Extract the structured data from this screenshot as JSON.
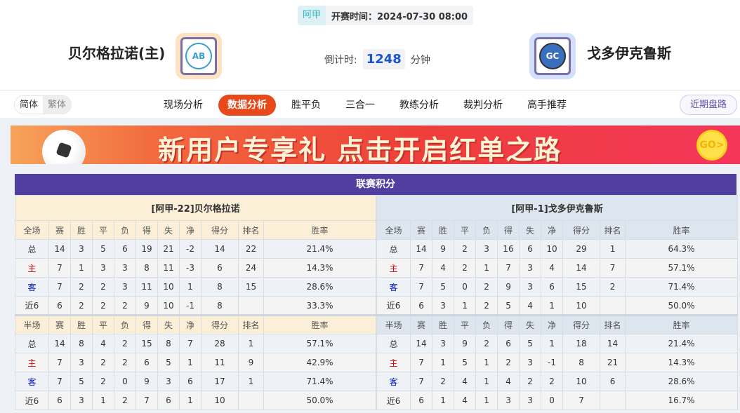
{
  "match": {
    "league": "阿甲",
    "kickoff": "开赛时间：2024-07-30 08:00",
    "home": "贝尔格拉诺(主)",
    "away": "戈多伊克鲁斯",
    "countdown_label": "倒计时:",
    "countdown_value": "1248",
    "countdown_unit": "分钟",
    "home_logo": "AB",
    "away_logo": "GC"
  },
  "nav": {
    "lang": [
      "简体",
      "繁体"
    ],
    "tabs": [
      "现场分析",
      "数据分析",
      "胜平负",
      "三合一",
      "教练分析",
      "裁判分析",
      "高手推荐"
    ],
    "active": 1,
    "recent": "近期盘路"
  },
  "banner": {
    "text": "新用户专享礼  点击开启红单之路",
    "go": "GO>"
  },
  "standings": {
    "title": "联赛积分",
    "columns": [
      "赛",
      "胜",
      "平",
      "负",
      "得",
      "失",
      "净",
      "得分",
      "排名",
      "胜率"
    ],
    "full_label": "全场",
    "half_label": "半场",
    "home": {
      "title": "[阿甲-22]贝尔格拉诺",
      "full": [
        [
          "总",
          "14",
          "3",
          "5",
          "6",
          "19",
          "21",
          "-2",
          "14",
          "22",
          "21.4%"
        ],
        [
          "主",
          "7",
          "1",
          "3",
          "3",
          "8",
          "11",
          "-3",
          "6",
          "24",
          "14.3%"
        ],
        [
          "客",
          "7",
          "2",
          "2",
          "3",
          "11",
          "10",
          "1",
          "8",
          "15",
          "28.6%"
        ],
        [
          "近6",
          "6",
          "2",
          "2",
          "2",
          "9",
          "10",
          "-1",
          "8",
          "",
          "33.3%"
        ]
      ],
      "half": [
        [
          "总",
          "14",
          "8",
          "4",
          "2",
          "15",
          "8",
          "7",
          "28",
          "1",
          "57.1%"
        ],
        [
          "主",
          "7",
          "3",
          "2",
          "2",
          "6",
          "5",
          "1",
          "11",
          "9",
          "42.9%"
        ],
        [
          "客",
          "7",
          "5",
          "2",
          "0",
          "9",
          "3",
          "6",
          "17",
          "1",
          "71.4%"
        ],
        [
          "近6",
          "6",
          "3",
          "1",
          "2",
          "7",
          "6",
          "1",
          "10",
          "",
          "50.0%"
        ]
      ]
    },
    "away": {
      "title": "[阿甲-1]戈多伊克鲁斯",
      "full": [
        [
          "总",
          "14",
          "9",
          "2",
          "3",
          "16",
          "6",
          "10",
          "29",
          "1",
          "64.3%"
        ],
        [
          "主",
          "7",
          "4",
          "2",
          "1",
          "7",
          "3",
          "4",
          "14",
          "7",
          "57.1%"
        ],
        [
          "客",
          "7",
          "5",
          "0",
          "2",
          "9",
          "3",
          "6",
          "15",
          "2",
          "71.4%"
        ],
        [
          "近6",
          "6",
          "3",
          "1",
          "2",
          "5",
          "4",
          "1",
          "10",
          "",
          "50.0%"
        ]
      ],
      "half": [
        [
          "总",
          "14",
          "3",
          "9",
          "2",
          "6",
          "5",
          "1",
          "18",
          "14",
          "21.4%"
        ],
        [
          "主",
          "7",
          "1",
          "5",
          "1",
          "2",
          "3",
          "-1",
          "8",
          "21",
          "14.3%"
        ],
        [
          "客",
          "7",
          "2",
          "4",
          "1",
          "4",
          "2",
          "2",
          "10",
          "6",
          "28.6%"
        ],
        [
          "近6",
          "6",
          "1",
          "4",
          "1",
          "3",
          "3",
          "0",
          "7",
          "",
          "16.7%"
        ]
      ]
    }
  }
}
